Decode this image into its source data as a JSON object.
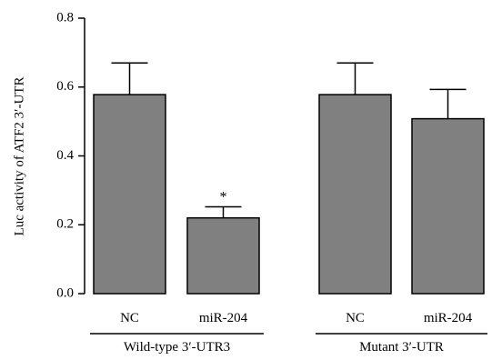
{
  "chart_data": {
    "type": "bar",
    "ylabel": "Luc activity of ATF2 3′-UTR",
    "ylim": [
      0,
      0.8
    ],
    "yticks": [
      "0.0",
      "0.2",
      "0.4",
      "0.6",
      "0.8"
    ],
    "grid": false,
    "bar_color": "#808080",
    "groups": [
      {
        "label": "Wild-type 3′-UTR3",
        "bars": [
          {
            "category": "NC",
            "value": 0.578,
            "error": 0.092,
            "annotation": ""
          },
          {
            "category": "miR-204",
            "value": 0.22,
            "error": 0.032,
            "annotation": "*"
          }
        ]
      },
      {
        "label": "Mutant 3′-UTR",
        "bars": [
          {
            "category": "NC",
            "value": 0.578,
            "error": 0.092,
            "annotation": ""
          },
          {
            "category": "miR-204",
            "value": 0.508,
            "error": 0.085,
            "annotation": ""
          }
        ]
      }
    ]
  }
}
